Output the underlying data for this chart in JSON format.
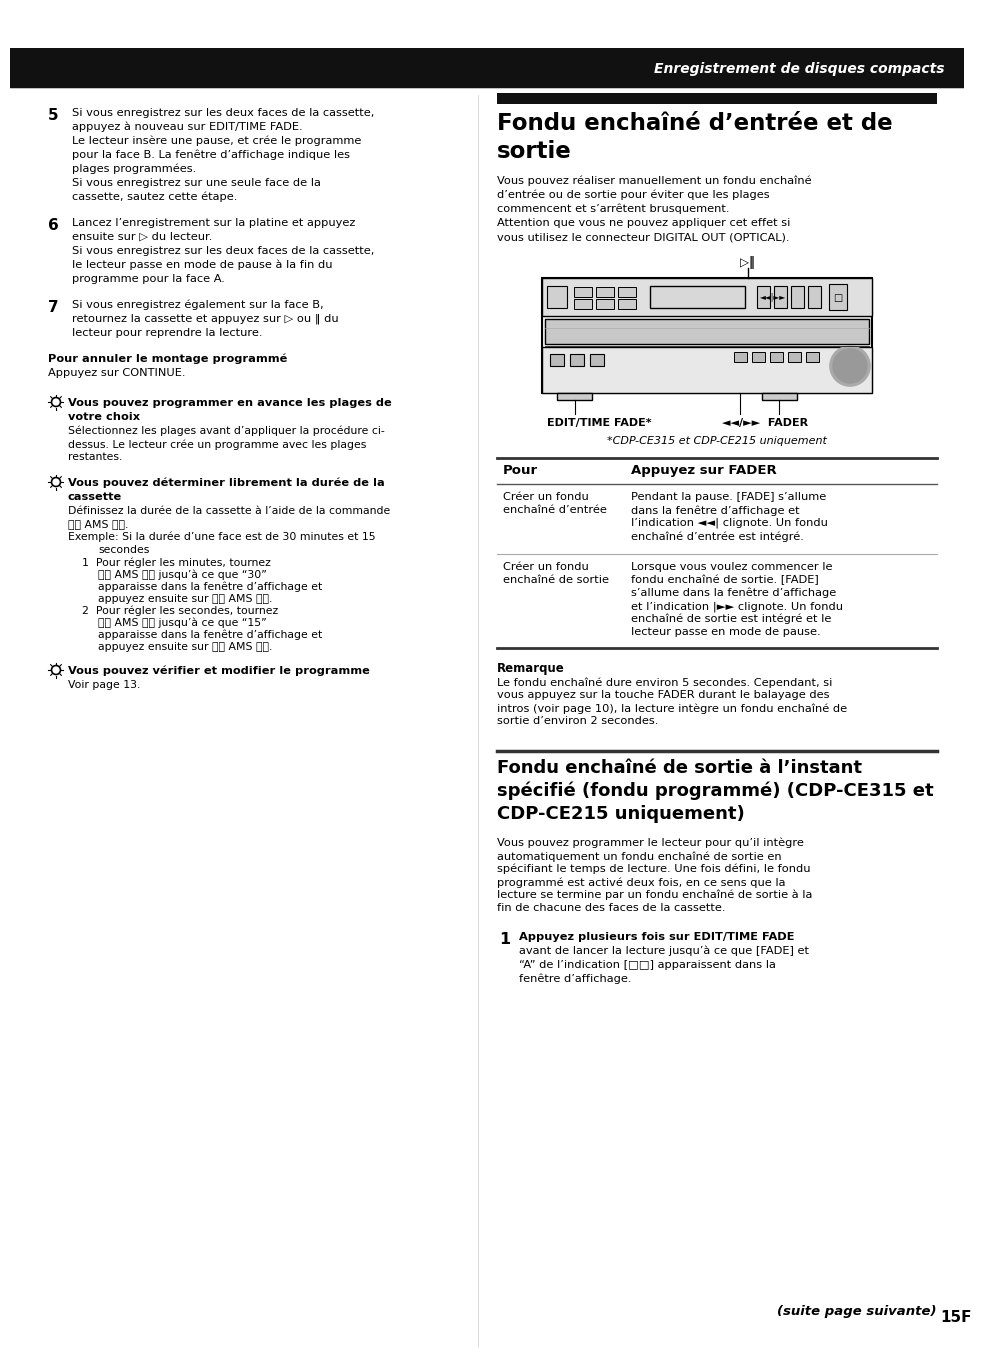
{
  "bg_color": "#ffffff",
  "header_text": "Enregistrement de disques compacts",
  "page_number": "15F",
  "right_intro_lines": [
    "Vous pouvez réaliser manuellement un fondu enchaîné",
    "d’entrée ou de sortie pour éviter que les plages",
    "commencent et s’arrêtent brusquement.",
    "Attention que vous ne pouvez appliquer cet effet si",
    "vous utilisez le connecteur DIGITAL OUT (OPTICAL)."
  ],
  "table_header_col1": "Pour",
  "table_header_col2": "Appuyez sur FADER",
  "remarque_title": "Remarque",
  "remarque_lines": [
    "Le fondu enchaîné dure environ 5 secondes. Cependant, si",
    "vous appuyez sur la touche FADER durant le balayage des",
    "intros (voir page 10), la lecture intègre un fondu enchaîné de",
    "sortie d’environ 2 secondes."
  ],
  "bottom_right_title_lines": [
    "Fondu enchaîné de sortie à l’instant",
    "spécifié (fondu programmé) (CDP-CE315 et",
    "CDP-CE215 uniquement)"
  ],
  "bottom_right_lines": [
    "Vous pouvez programmer le lecteur pour qu’il intègre",
    "automatiquement un fondu enchaîné de sortie en",
    "spécifiant le temps de lecture. Une fois défini, le fondu",
    "programmé est activé deux fois, en ce sens que la",
    "lecture se termine par un fondu enchaîné de sortie à la",
    "fin de chacune des faces de la cassette."
  ],
  "suite_text": "(suite page suivante)"
}
